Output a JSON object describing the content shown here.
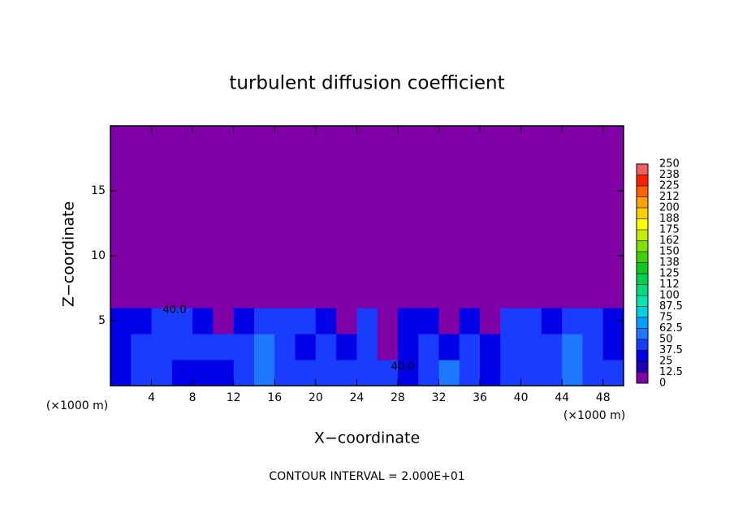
{
  "chart_data": {
    "type": "heatmap",
    "title": "turbulent diffusion coefficient",
    "x_label": "X−coordinate",
    "y_label": "Z−coordinate",
    "x_unit": "(×1000 m)",
    "y_unit": "(×1000 m)",
    "footnote": "CONTOUR INTERVAL = 2.000E+01",
    "contour_labels": [
      "40.0",
      "40.0"
    ],
    "xlim": [
      0,
      50
    ],
    "ylim": [
      0,
      20
    ],
    "xticks": [
      4,
      8,
      12,
      16,
      20,
      24,
      28,
      32,
      36,
      40,
      44,
      48
    ],
    "yticks": [
      5,
      10,
      15
    ],
    "x": [
      1,
      3,
      5,
      7,
      9,
      11,
      13,
      15,
      17,
      19,
      21,
      23,
      25,
      27,
      29,
      31,
      33,
      35,
      37,
      39,
      41,
      43,
      45,
      47,
      49
    ],
    "y": [
      1,
      3,
      5,
      7,
      9,
      11,
      13,
      15,
      17,
      19
    ],
    "z": [
      [
        35,
        40,
        38,
        35,
        35,
        30,
        40,
        50,
        45,
        40,
        42,
        38,
        45,
        40,
        35,
        42,
        50,
        45,
        35,
        40,
        38,
        45,
        55,
        40,
        45
      ],
      [
        30,
        40,
        45,
        42,
        40,
        38,
        45,
        55,
        40,
        35,
        40,
        35,
        42,
        5,
        30,
        45,
        35,
        40,
        25,
        45,
        42,
        40,
        50,
        40,
        35
      ],
      [
        25,
        35,
        40,
        38,
        35,
        5,
        30,
        40,
        38,
        40,
        35,
        5,
        40,
        5,
        35,
        30,
        5,
        30,
        5,
        40,
        40,
        35,
        40,
        38,
        30
      ],
      [
        2,
        2,
        2,
        2,
        2,
        2,
        2,
        2,
        2,
        2,
        2,
        2,
        2,
        2,
        2,
        2,
        2,
        2,
        2,
        2,
        2,
        2,
        2,
        2,
        2
      ],
      [
        2,
        2,
        2,
        2,
        2,
        2,
        2,
        2,
        2,
        2,
        2,
        2,
        2,
        2,
        2,
        2,
        2,
        2,
        2,
        2,
        2,
        2,
        2,
        2,
        2
      ],
      [
        2,
        2,
        2,
        2,
        2,
        2,
        2,
        2,
        2,
        2,
        2,
        2,
        2,
        2,
        2,
        2,
        2,
        2,
        2,
        2,
        2,
        2,
        2,
        2,
        2
      ],
      [
        2,
        2,
        2,
        2,
        2,
        2,
        2,
        2,
        2,
        2,
        2,
        2,
        2,
        2,
        2,
        2,
        2,
        2,
        2,
        2,
        2,
        2,
        2,
        2,
        2
      ],
      [
        2,
        2,
        2,
        2,
        2,
        2,
        2,
        2,
        2,
        2,
        2,
        2,
        2,
        2,
        2,
        2,
        2,
        2,
        2,
        2,
        2,
        2,
        2,
        2,
        2
      ],
      [
        2,
        2,
        2,
        2,
        2,
        2,
        2,
        2,
        2,
        2,
        2,
        2,
        2,
        2,
        2,
        2,
        2,
        2,
        2,
        2,
        2,
        2,
        2,
        2,
        2
      ],
      [
        2,
        2,
        2,
        2,
        2,
        2,
        2,
        2,
        2,
        2,
        2,
        2,
        2,
        2,
        2,
        2,
        2,
        2,
        2,
        2,
        2,
        2,
        2,
        2,
        2
      ]
    ],
    "colorbar_ticks": [
      0,
      12.5,
      25,
      37.5,
      50,
      62.5,
      75,
      87.5,
      100,
      {
        "value": 112.5,
        "label": "112"
      },
      125,
      {
        "value": 137.5,
        "label": "138"
      },
      150,
      {
        "value": 162.5,
        "label": "162"
      },
      175,
      {
        "value": 187.5,
        "label": "188"
      },
      200,
      {
        "value": 212.5,
        "label": "212"
      },
      225,
      {
        "value": 237.5,
        "label": "238"
      },
      250
    ],
    "colors": [
      "#7f00a6",
      "#1e00b4",
      "#0000e6",
      "#1a3cff",
      "#1e78ff",
      "#00a0ff",
      "#00d0e0",
      "#00e8b0",
      "#00dc80",
      "#00d050",
      "#10c820",
      "#40d000",
      "#80e000",
      "#c0f000",
      "#ffff00",
      "#ffd000",
      "#ffa000",
      "#ff6000",
      "#ff2000",
      "#f06060"
    ]
  }
}
